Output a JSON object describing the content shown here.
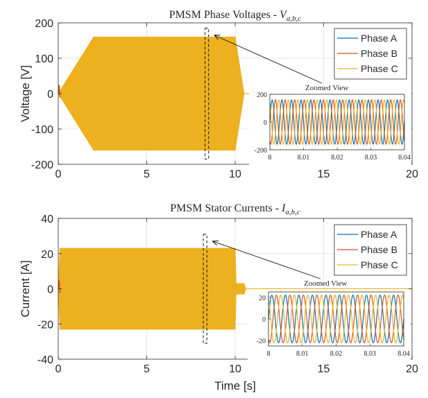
{
  "chart_data": [
    {
      "type": "line",
      "title": "PMSM Phase Voltages - ",
      "title_math": "V",
      "title_sub": "a,b,c",
      "ylabel": "Voltage [V]",
      "xlabel": "",
      "xlim": [
        0,
        20
      ],
      "ylim": [
        -200,
        200
      ],
      "xticks": [
        0,
        5,
        10,
        15,
        20
      ],
      "xtick_labels": [
        "0",
        "5",
        "10",
        "15",
        "20"
      ],
      "yticks": [
        200,
        100,
        0,
        -100,
        -200
      ],
      "ytick_labels": [
        "200",
        "100",
        "0",
        "-100",
        "-200"
      ],
      "grid": true,
      "legend_position": "top-right",
      "envelope": {
        "x": [
          0,
          2,
          10,
          10.5,
          20
        ],
        "amplitude": [
          0,
          160,
          160,
          0,
          0
        ]
      },
      "series": [
        {
          "name": "Phase A",
          "color": "#0072BD"
        },
        {
          "name": "Phase B",
          "color": "#D95319"
        },
        {
          "name": "Phase C",
          "color": "#EDB120"
        }
      ],
      "zoom_box": {
        "x": [
          8.3,
          8.5
        ],
        "y": [
          -185,
          185
        ]
      },
      "annotation": "Zoomed View",
      "inset": {
        "xlim": [
          8,
          8.04
        ],
        "ylim": [
          -200,
          200
        ],
        "xticks": [
          8,
          8.01,
          8.02,
          8.03,
          8.04
        ],
        "xtick_labels": [
          "8",
          "8.01",
          "8.02",
          "8.03",
          "8.04"
        ],
        "yticks": [
          200,
          0,
          -200
        ],
        "ytick_labels": [
          "200",
          "0",
          "-200"
        ],
        "amplitude": 160,
        "frequency_hz": 350,
        "phase_offsets_deg": [
          0,
          -120,
          120
        ]
      }
    },
    {
      "type": "line",
      "title": "PMSM Stator Currents - ",
      "title_math": "I",
      "title_sub": "a,b,c",
      "ylabel": "Current [A]",
      "xlabel": "Time [s]",
      "xlim": [
        0,
        20
      ],
      "ylim": [
        -40,
        40
      ],
      "xticks": [
        0,
        5,
        10,
        15,
        20
      ],
      "xtick_labels": [
        "0",
        "5",
        "10",
        "15",
        "20"
      ],
      "yticks": [
        40,
        20,
        0,
        -20,
        -40
      ],
      "ytick_labels": [
        "40",
        "20",
        "0",
        "-20",
        "-40"
      ],
      "grid": true,
      "legend_position": "top-right",
      "envelope": {
        "x": [
          0,
          0.1,
          10,
          10.05,
          10.2,
          10.5,
          10.6,
          20
        ],
        "amplitude": [
          0,
          23,
          23,
          3,
          3,
          3,
          0,
          0
        ]
      },
      "series": [
        {
          "name": "Phase A",
          "color": "#0072BD"
        },
        {
          "name": "Phase B",
          "color": "#D95319"
        },
        {
          "name": "Phase C",
          "color": "#EDB120"
        }
      ],
      "zoom_box": {
        "x": [
          8.2,
          8.4
        ],
        "y": [
          -31,
          31
        ]
      },
      "annotation": "Zoomed View",
      "inset": {
        "xlim": [
          8,
          8.04
        ],
        "ylim": [
          -25,
          25
        ],
        "xticks": [
          8,
          8.01,
          8.02,
          8.03,
          8.04
        ],
        "xtick_labels": [
          "8",
          "8.01",
          "8.02",
          "8.03",
          "8.04"
        ],
        "yticks": [
          20,
          0,
          -20
        ],
        "ytick_labels": [
          "20",
          "0",
          "-20"
        ],
        "amplitude": 22,
        "frequency_hz": 250,
        "phase_offsets_deg": [
          0,
          -120,
          120
        ]
      }
    }
  ]
}
